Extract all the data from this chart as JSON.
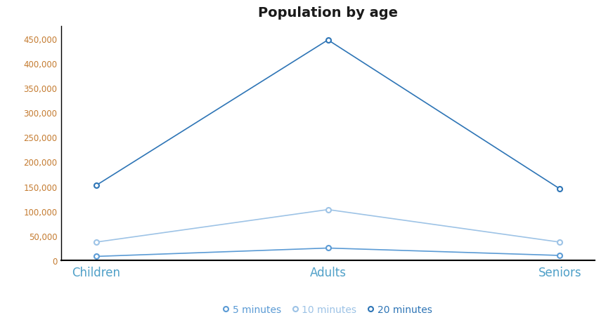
{
  "title": "Population by age",
  "categories": [
    "Children",
    "Adults",
    "Seniors"
  ],
  "series": [
    {
      "label": "5 minutes",
      "values": [
        8000,
        25000,
        10000
      ],
      "color": "#5b9bd5",
      "linewidth": 1.2
    },
    {
      "label": "10 minutes",
      "values": [
        37000,
        103000,
        37000
      ],
      "color": "#9dc3e6",
      "linewidth": 1.2
    },
    {
      "label": "20 minutes",
      "values": [
        152000,
        447000,
        145000
      ],
      "color": "#2e75b6",
      "linewidth": 1.2
    }
  ],
  "ylim": [
    0,
    475000
  ],
  "yticks": [
    0,
    50000,
    100000,
    150000,
    200000,
    250000,
    300000,
    350000,
    400000,
    450000
  ],
  "xtick_color": "#4fa0c8",
  "ytick_color": "#c47b30",
  "title_fontsize": 14,
  "title_fontweight": "bold",
  "background_color": "#ffffff",
  "legend_colors": [
    "#4472c4",
    "#9dc3e6",
    "#2e75b6"
  ],
  "spine_bottom_color": "#000000"
}
